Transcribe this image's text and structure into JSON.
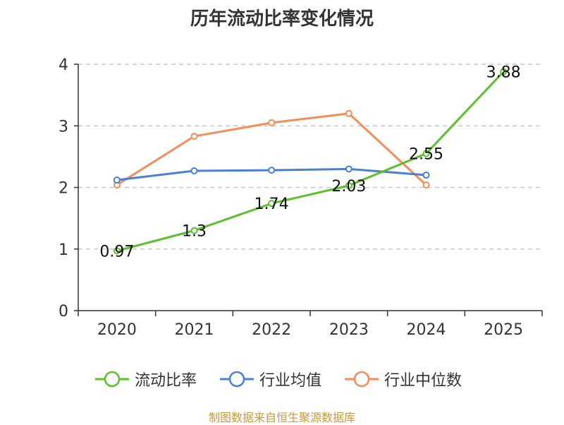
{
  "chart_data": {
    "type": "line",
    "title": "历年流动比率变化情况",
    "categories": [
      "2020",
      "2021",
      "2022",
      "2023",
      "2024",
      "2025"
    ],
    "ylim": [
      0,
      4
    ],
    "yticks": [
      "0",
      "1",
      "2",
      "3",
      "4"
    ],
    "grid": true,
    "series": [
      {
        "name": "流动比率",
        "color": "#5cbf2e",
        "values": [
          0.97,
          1.3,
          1.74,
          2.03,
          2.55,
          3.88
        ],
        "labels": [
          "0.97",
          "1.3",
          "1.74",
          "2.03",
          "2.55",
          "3.88"
        ]
      },
      {
        "name": "行业均值",
        "color": "#4a7fd4",
        "values": [
          2.12,
          2.27,
          2.28,
          2.3,
          2.2,
          null
        ]
      },
      {
        "name": "行业中位数",
        "color": "#f48c5b",
        "values": [
          2.04,
          2.83,
          3.05,
          3.2,
          2.04,
          null
        ]
      }
    ],
    "legend_position": "bottom"
  },
  "footer": {
    "source": "制图数据来自恒生聚源数据库"
  }
}
